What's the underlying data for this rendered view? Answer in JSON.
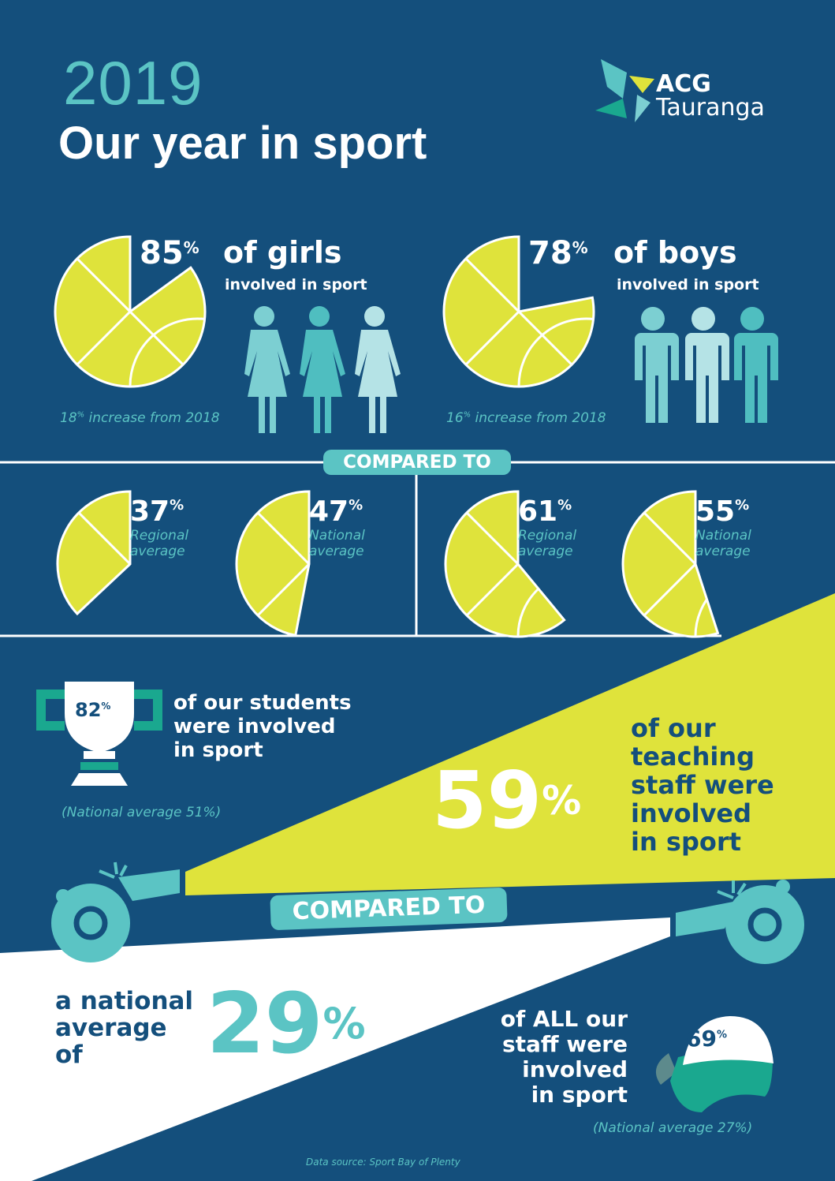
{
  "header": {
    "year": "2019",
    "title": "Our year in sport"
  },
  "logo": {
    "line1": "ACG",
    "line2": "Tauranga"
  },
  "girls": {
    "percent": 85,
    "percent_text": "85",
    "headline": "of girls",
    "sub": "involved in sport",
    "note_value": "18",
    "note_text": " increase from 2018"
  },
  "boys": {
    "percent": 78,
    "percent_text": "78",
    "headline": "of boys",
    "sub": "involved in sport",
    "note_value": "16",
    "note_text": " increase from 2018"
  },
  "compared_label": "COMPARED TO",
  "comparisons": [
    {
      "percent": 37,
      "percent_text": "37",
      "line1": "Regional",
      "line2": "average"
    },
    {
      "percent": 47,
      "percent_text": "47",
      "line1": "National",
      "line2": "average"
    },
    {
      "percent": 61,
      "percent_text": "61",
      "line1": "Regional",
      "line2": "average"
    },
    {
      "percent": 55,
      "percent_text": "55",
      "line1": "National",
      "line2": "average"
    }
  ],
  "students": {
    "percent_text": "82",
    "line1": "of our students",
    "line2": "were involved",
    "line3": "in sport",
    "note": "(National average 51%)"
  },
  "teaching": {
    "percent_text": "59",
    "line1": "of our",
    "line2": "teaching",
    "line3": "staff were",
    "line4": "involved",
    "line5": "in sport"
  },
  "compared_label_2": "COMPARED TO",
  "national": {
    "line1": "a national",
    "line2": "average",
    "line3": "of",
    "percent_text": "29"
  },
  "all_staff": {
    "percent_text": "69",
    "line1": "of ALL our",
    "line2": "staff were",
    "line3": "involved",
    "line4": "in sport",
    "note": "(National average 27%)"
  },
  "source": "Data source: Sport Bay of Plenty",
  "colors": {
    "background": "#144f7c",
    "yellow": "#dfe33b",
    "teal": "#5bc4c4",
    "green": "#1aa88f"
  }
}
